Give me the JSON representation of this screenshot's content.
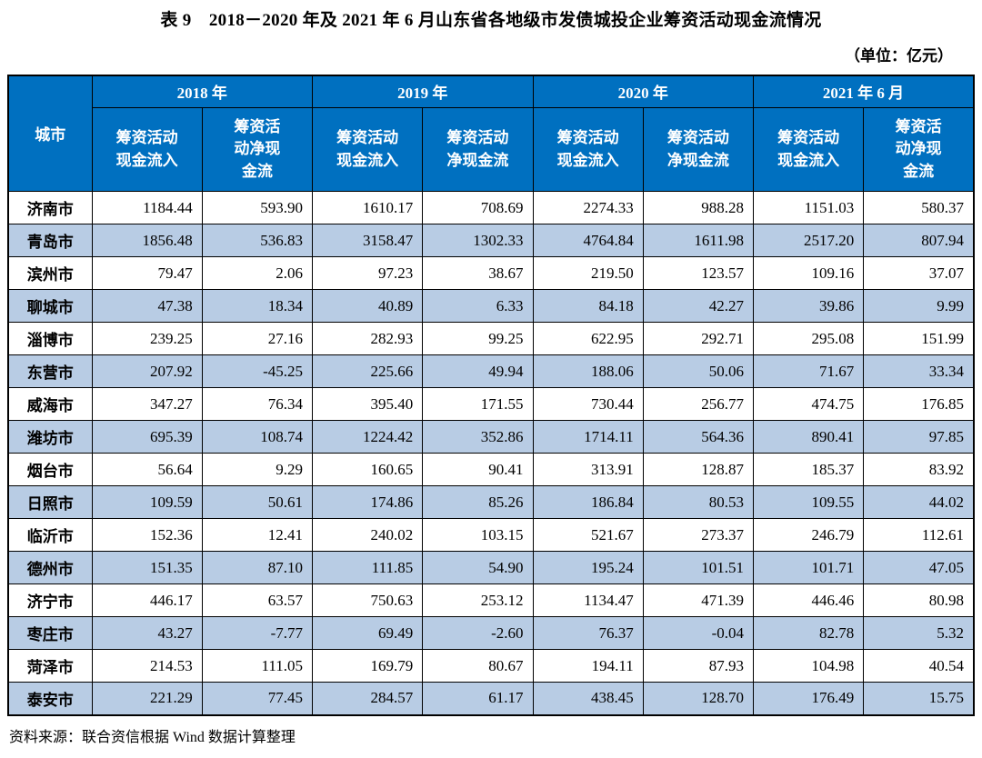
{
  "title": "表 9　2018－2020 年及 2021 年 6 月山东省各地级市发债城投企业筹资活动现金流情况",
  "unit_note": "（单位：亿元）",
  "source_note": "资料来源：联合资信根据 Wind 数据计算整理",
  "colors": {
    "header_bg": "#0070c0",
    "header_text": "#ffffff",
    "row_alt_bg": "#b8cce4",
    "border": "#000000"
  },
  "table": {
    "city_header": "城市",
    "year_groups": [
      {
        "label": "2018 年",
        "sub": [
          "筹资活动\n现金流入",
          "筹资活\n动净现\n金流"
        ]
      },
      {
        "label": "2019 年",
        "sub": [
          "筹资活动\n现金流入",
          "筹资活动\n净现金流"
        ]
      },
      {
        "label": "2020 年",
        "sub": [
          "筹资活动\n现金流入",
          "筹资活动\n净现金流"
        ]
      },
      {
        "label": "2021 年 6 月",
        "sub": [
          "筹资活动\n现金流入",
          "筹资活\n动净现\n金流"
        ]
      }
    ],
    "rows": [
      {
        "city": "济南市",
        "values": [
          "1184.44",
          "593.90",
          "1610.17",
          "708.69",
          "2274.33",
          "988.28",
          "1151.03",
          "580.37"
        ]
      },
      {
        "city": "青岛市",
        "values": [
          "1856.48",
          "536.83",
          "3158.47",
          "1302.33",
          "4764.84",
          "1611.98",
          "2517.20",
          "807.94"
        ]
      },
      {
        "city": "滨州市",
        "values": [
          "79.47",
          "2.06",
          "97.23",
          "38.67",
          "219.50",
          "123.57",
          "109.16",
          "37.07"
        ]
      },
      {
        "city": "聊城市",
        "values": [
          "47.38",
          "18.34",
          "40.89",
          "6.33",
          "84.18",
          "42.27",
          "39.86",
          "9.99"
        ]
      },
      {
        "city": "淄博市",
        "values": [
          "239.25",
          "27.16",
          "282.93",
          "99.25",
          "622.95",
          "292.71",
          "295.08",
          "151.99"
        ]
      },
      {
        "city": "东营市",
        "values": [
          "207.92",
          "-45.25",
          "225.66",
          "49.94",
          "188.06",
          "50.06",
          "71.67",
          "33.34"
        ]
      },
      {
        "city": "威海市",
        "values": [
          "347.27",
          "76.34",
          "395.40",
          "171.55",
          "730.44",
          "256.77",
          "474.75",
          "176.85"
        ]
      },
      {
        "city": "潍坊市",
        "values": [
          "695.39",
          "108.74",
          "1224.42",
          "352.86",
          "1714.11",
          "564.36",
          "890.41",
          "97.85"
        ]
      },
      {
        "city": "烟台市",
        "values": [
          "56.64",
          "9.29",
          "160.65",
          "90.41",
          "313.91",
          "128.87",
          "185.37",
          "83.92"
        ]
      },
      {
        "city": "日照市",
        "values": [
          "109.59",
          "50.61",
          "174.86",
          "85.26",
          "186.84",
          "80.53",
          "109.55",
          "44.02"
        ]
      },
      {
        "city": "临沂市",
        "values": [
          "152.36",
          "12.41",
          "240.02",
          "103.15",
          "521.67",
          "273.37",
          "246.79",
          "112.61"
        ]
      },
      {
        "city": "德州市",
        "values": [
          "151.35",
          "87.10",
          "111.85",
          "54.90",
          "195.24",
          "101.51",
          "101.71",
          "47.05"
        ]
      },
      {
        "city": "济宁市",
        "values": [
          "446.17",
          "63.57",
          "750.63",
          "253.12",
          "1134.47",
          "471.39",
          "446.46",
          "80.98"
        ]
      },
      {
        "city": "枣庄市",
        "values": [
          "43.27",
          "-7.77",
          "69.49",
          "-2.60",
          "76.37",
          "-0.04",
          "82.78",
          "5.32"
        ]
      },
      {
        "city": "菏泽市",
        "values": [
          "214.53",
          "111.05",
          "169.79",
          "80.67",
          "194.11",
          "87.93",
          "104.98",
          "40.54"
        ]
      },
      {
        "city": "泰安市",
        "values": [
          "221.29",
          "77.45",
          "284.57",
          "61.17",
          "438.45",
          "128.70",
          "176.49",
          "15.75"
        ]
      }
    ]
  }
}
